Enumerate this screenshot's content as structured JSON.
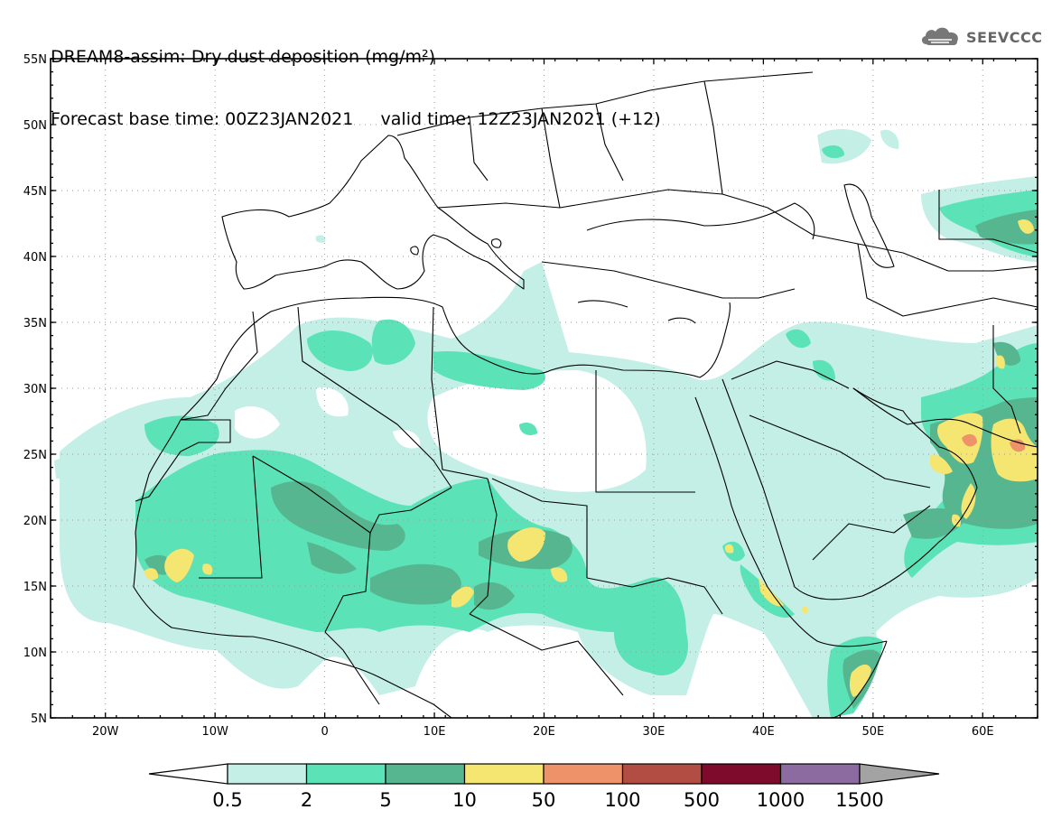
{
  "header": {
    "line1": "DREAM8-assim: Dry dust deposition (mg/m²)",
    "line2": "Forecast base time: 00Z23JAN2021     valid time: 12Z23JAN2021 (+12)"
  },
  "logo": {
    "text": "SEEVCCC",
    "icon": "cloud-logo-icon"
  },
  "map": {
    "lon_range": [
      -25,
      65
    ],
    "lat_range": [
      5,
      55
    ],
    "lat_ticks": [
      "55N",
      "50N",
      "45N",
      "40N",
      "35N",
      "30N",
      "25N",
      "20N",
      "15N",
      "10N",
      "5N"
    ],
    "lon_ticks": [
      "20W",
      "10W",
      "0",
      "10E",
      "20E",
      "30E",
      "40E",
      "50E",
      "60E"
    ],
    "grid": true
  },
  "colorbar": {
    "labels": [
      "0.5",
      "2",
      "5",
      "10",
      "50",
      "100",
      "500",
      "1000",
      "1500"
    ],
    "colors": [
      "#c3efe6",
      "#5ce2b7",
      "#56b690",
      "#f5e571",
      "#ee9369",
      "#b14d42",
      "#7e0a2c",
      "#8c6ba0"
    ],
    "under_color": "#ffffff",
    "over_color": "#a3a3a3"
  }
}
